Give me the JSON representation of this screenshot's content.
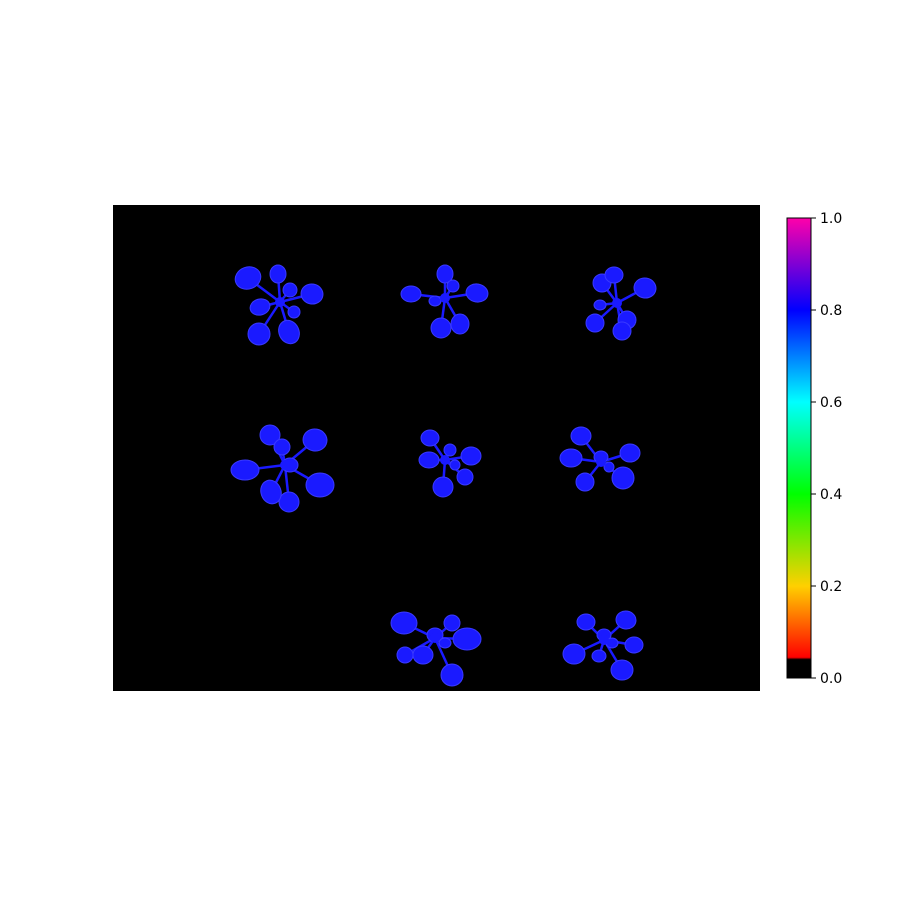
{
  "image": {
    "background_color": "#000000",
    "plant_color": "#1a1aff",
    "plant_highlight_color": "#3a3aff",
    "plants": [
      {
        "id": "plant-r1c1",
        "row": 1,
        "col": 1
      },
      {
        "id": "plant-r1c2",
        "row": 1,
        "col": 2
      },
      {
        "id": "plant-r1c3",
        "row": 1,
        "col": 3
      },
      {
        "id": "plant-r2c1",
        "row": 2,
        "col": 1
      },
      {
        "id": "plant-r2c2",
        "row": 2,
        "col": 2
      },
      {
        "id": "plant-r2c3",
        "row": 2,
        "col": 3
      },
      {
        "id": "plant-r3c2",
        "row": 3,
        "col": 2
      },
      {
        "id": "plant-r3c3",
        "row": 3,
        "col": 3
      }
    ]
  },
  "colorbar": {
    "colormap": "hsv-like (black below threshold)",
    "stops": [
      {
        "value": 0.0,
        "color": "#000000"
      },
      {
        "value": 0.04,
        "color": "#000000"
      },
      {
        "value": 0.045,
        "color": "#ff0000"
      },
      {
        "value": 0.2,
        "color": "#ffd000"
      },
      {
        "value": 0.4,
        "color": "#00ff00"
      },
      {
        "value": 0.6,
        "color": "#00ffff"
      },
      {
        "value": 0.8,
        "color": "#0000ff"
      },
      {
        "value": 1.0,
        "color": "#ff00aa"
      }
    ],
    "ticks": [
      {
        "value": 0.0,
        "label": "0.0"
      },
      {
        "value": 0.2,
        "label": "0.2"
      },
      {
        "value": 0.4,
        "label": "0.4"
      },
      {
        "value": 0.6,
        "label": "0.6"
      },
      {
        "value": 0.8,
        "label": "0.8"
      },
      {
        "value": 1.0,
        "label": "1.0"
      }
    ]
  }
}
